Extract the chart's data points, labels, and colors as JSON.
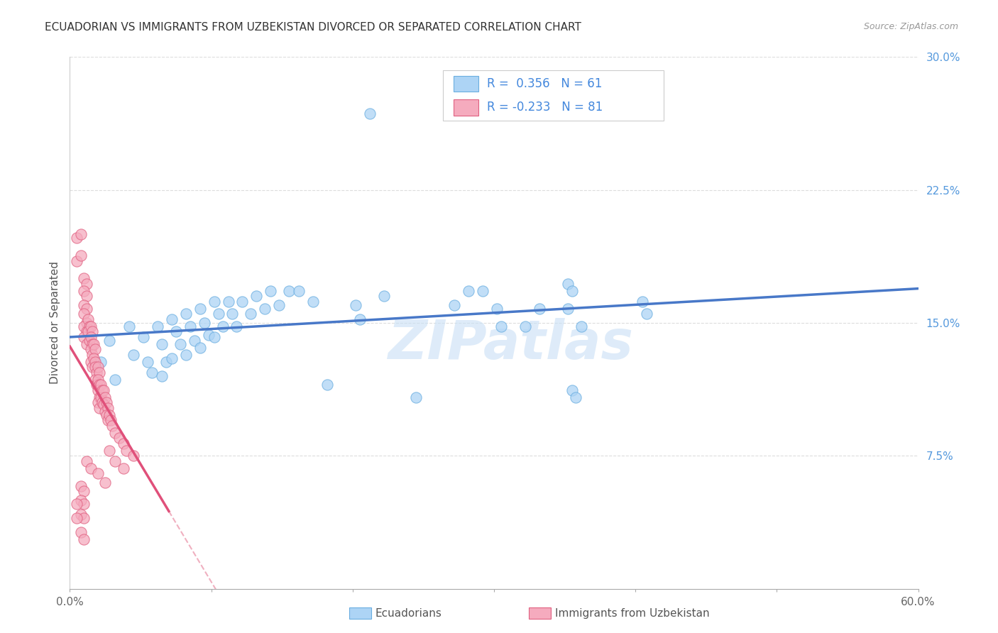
{
  "title": "ECUADORIAN VS IMMIGRANTS FROM UZBEKISTAN DIVORCED OR SEPARATED CORRELATION CHART",
  "source": "Source: ZipAtlas.com",
  "ylabel": "Divorced or Separated",
  "xlim": [
    0.0,
    0.6
  ],
  "ylim": [
    0.0,
    0.3
  ],
  "legend_label1": "Ecuadorians",
  "legend_label2": "Immigrants from Uzbekistan",
  "R1": "0.356",
  "N1": "61",
  "R2": "-0.233",
  "N2": "81",
  "blue_color": "#ADD4F5",
  "pink_color": "#F5ABBE",
  "blue_edge_color": "#6AAEE0",
  "pink_edge_color": "#E06080",
  "blue_line_color": "#4878C8",
  "pink_line_color": "#E0507A",
  "pink_dash_color": "#F0B0C0",
  "watermark": "ZIPatlas",
  "background_color": "#FFFFFF",
  "grid_color": "#DDDDDD",
  "blue_scatter": [
    [
      0.022,
      0.128
    ],
    [
      0.028,
      0.14
    ],
    [
      0.032,
      0.118
    ],
    [
      0.042,
      0.148
    ],
    [
      0.045,
      0.132
    ],
    [
      0.052,
      0.142
    ],
    [
      0.055,
      0.128
    ],
    [
      0.058,
      0.122
    ],
    [
      0.062,
      0.148
    ],
    [
      0.065,
      0.138
    ],
    [
      0.068,
      0.128
    ],
    [
      0.065,
      0.12
    ],
    [
      0.072,
      0.152
    ],
    [
      0.075,
      0.145
    ],
    [
      0.078,
      0.138
    ],
    [
      0.072,
      0.13
    ],
    [
      0.082,
      0.155
    ],
    [
      0.085,
      0.148
    ],
    [
      0.088,
      0.14
    ],
    [
      0.082,
      0.132
    ],
    [
      0.092,
      0.158
    ],
    [
      0.095,
      0.15
    ],
    [
      0.098,
      0.143
    ],
    [
      0.092,
      0.136
    ],
    [
      0.102,
      0.162
    ],
    [
      0.105,
      0.155
    ],
    [
      0.108,
      0.148
    ],
    [
      0.102,
      0.142
    ],
    [
      0.112,
      0.162
    ],
    [
      0.115,
      0.155
    ],
    [
      0.118,
      0.148
    ],
    [
      0.122,
      0.162
    ],
    [
      0.128,
      0.155
    ],
    [
      0.132,
      0.165
    ],
    [
      0.138,
      0.158
    ],
    [
      0.142,
      0.168
    ],
    [
      0.148,
      0.16
    ],
    [
      0.155,
      0.168
    ],
    [
      0.162,
      0.168
    ],
    [
      0.172,
      0.162
    ],
    [
      0.182,
      0.115
    ],
    [
      0.202,
      0.16
    ],
    [
      0.205,
      0.152
    ],
    [
      0.222,
      0.165
    ],
    [
      0.245,
      0.108
    ],
    [
      0.272,
      0.16
    ],
    [
      0.282,
      0.168
    ],
    [
      0.292,
      0.168
    ],
    [
      0.302,
      0.158
    ],
    [
      0.305,
      0.148
    ],
    [
      0.322,
      0.148
    ],
    [
      0.332,
      0.158
    ],
    [
      0.352,
      0.158
    ],
    [
      0.362,
      0.148
    ],
    [
      0.352,
      0.172
    ],
    [
      0.355,
      0.168
    ],
    [
      0.405,
      0.162
    ],
    [
      0.408,
      0.155
    ],
    [
      0.355,
      0.112
    ],
    [
      0.358,
      0.108
    ],
    [
      0.212,
      0.268
    ]
  ],
  "pink_scatter": [
    [
      0.005,
      0.198
    ],
    [
      0.008,
      0.2
    ],
    [
      0.005,
      0.185
    ],
    [
      0.008,
      0.188
    ],
    [
      0.01,
      0.175
    ],
    [
      0.012,
      0.172
    ],
    [
      0.01,
      0.168
    ],
    [
      0.012,
      0.165
    ],
    [
      0.01,
      0.16
    ],
    [
      0.012,
      0.158
    ],
    [
      0.01,
      0.155
    ],
    [
      0.012,
      0.15
    ],
    [
      0.01,
      0.148
    ],
    [
      0.012,
      0.145
    ],
    [
      0.01,
      0.142
    ],
    [
      0.012,
      0.138
    ],
    [
      0.013,
      0.152
    ],
    [
      0.014,
      0.148
    ],
    [
      0.013,
      0.145
    ],
    [
      0.014,
      0.14
    ],
    [
      0.015,
      0.148
    ],
    [
      0.016,
      0.145
    ],
    [
      0.015,
      0.142
    ],
    [
      0.016,
      0.138
    ],
    [
      0.015,
      0.135
    ],
    [
      0.016,
      0.132
    ],
    [
      0.015,
      0.128
    ],
    [
      0.016,
      0.125
    ],
    [
      0.017,
      0.138
    ],
    [
      0.018,
      0.135
    ],
    [
      0.017,
      0.13
    ],
    [
      0.018,
      0.128
    ],
    [
      0.018,
      0.125
    ],
    [
      0.019,
      0.122
    ],
    [
      0.018,
      0.118
    ],
    [
      0.019,
      0.115
    ],
    [
      0.02,
      0.125
    ],
    [
      0.021,
      0.122
    ],
    [
      0.02,
      0.118
    ],
    [
      0.021,
      0.115
    ],
    [
      0.02,
      0.112
    ],
    [
      0.021,
      0.108
    ],
    [
      0.02,
      0.105
    ],
    [
      0.021,
      0.102
    ],
    [
      0.022,
      0.115
    ],
    [
      0.023,
      0.112
    ],
    [
      0.022,
      0.108
    ],
    [
      0.023,
      0.105
    ],
    [
      0.024,
      0.112
    ],
    [
      0.025,
      0.108
    ],
    [
      0.024,
      0.104
    ],
    [
      0.025,
      0.1
    ],
    [
      0.026,
      0.105
    ],
    [
      0.027,
      0.102
    ],
    [
      0.026,
      0.098
    ],
    [
      0.027,
      0.095
    ],
    [
      0.028,
      0.098
    ],
    [
      0.029,
      0.095
    ],
    [
      0.03,
      0.092
    ],
    [
      0.032,
      0.088
    ],
    [
      0.035,
      0.085
    ],
    [
      0.038,
      0.082
    ],
    [
      0.04,
      0.078
    ],
    [
      0.045,
      0.075
    ],
    [
      0.012,
      0.072
    ],
    [
      0.015,
      0.068
    ],
    [
      0.02,
      0.065
    ],
    [
      0.025,
      0.06
    ],
    [
      0.008,
      0.058
    ],
    [
      0.01,
      0.055
    ],
    [
      0.008,
      0.05
    ],
    [
      0.01,
      0.048
    ],
    [
      0.008,
      0.042
    ],
    [
      0.01,
      0.04
    ],
    [
      0.005,
      0.048
    ],
    [
      0.005,
      0.04
    ],
    [
      0.028,
      0.078
    ],
    [
      0.032,
      0.072
    ],
    [
      0.038,
      0.068
    ],
    [
      0.008,
      0.032
    ],
    [
      0.01,
      0.028
    ]
  ]
}
